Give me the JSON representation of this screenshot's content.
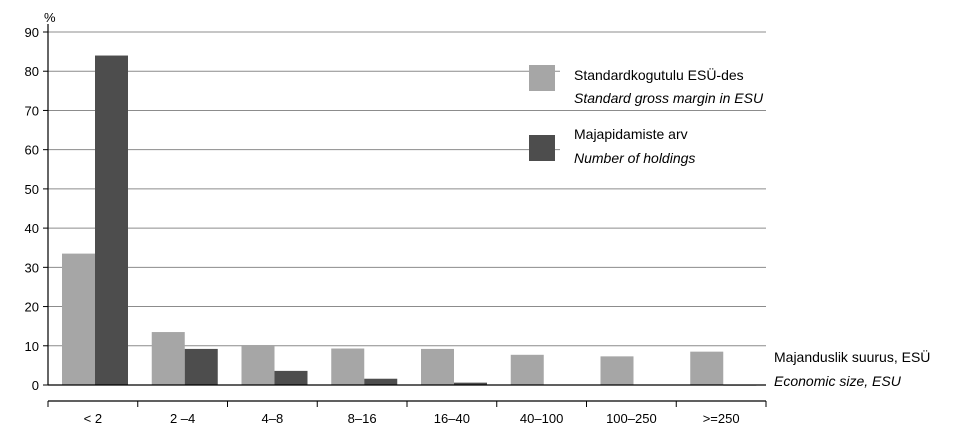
{
  "chart_data": {
    "type": "bar",
    "ylabel": "%",
    "xlabel": "Majanduslik suurus, ESÜ",
    "xlabel_en": "Economic size, ESU",
    "ylim": [
      0,
      90
    ],
    "yticks": [
      0,
      10,
      20,
      30,
      40,
      50,
      60,
      70,
      80,
      90
    ],
    "grid": true,
    "legend_position": "top-right",
    "categories": [
      "< 2",
      "2 –4",
      "4–8",
      "8–16",
      "16–40",
      "40–100",
      "100–250",
      ">=250"
    ],
    "series": [
      {
        "name": "Standardkogutulu ESÜ-des",
        "name_en": "Standard gross margin in ESU",
        "color": "#a6a6a6",
        "values": [
          33.5,
          13.5,
          10.2,
          9.3,
          9.2,
          7.7,
          7.3,
          8.5
        ]
      },
      {
        "name": "Majapidamiste arv",
        "name_en": "Number of holdings",
        "color": "#4d4d4d",
        "values": [
          84.0,
          9.2,
          3.6,
          1.6,
          0.6,
          0.1,
          0.1,
          0.0
        ]
      }
    ]
  }
}
